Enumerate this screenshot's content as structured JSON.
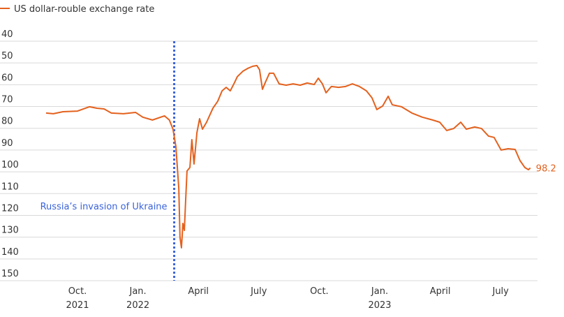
{
  "chart_data": {
    "type": "line",
    "x": [
      2021.62,
      2021.65,
      2021.69,
      2021.75,
      2021.8,
      2021.83,
      2021.86,
      2021.89,
      2021.94,
      2021.99,
      2022.02,
      2022.06,
      2022.11,
      2022.13,
      2022.145,
      2022.157,
      2022.163,
      2022.169,
      2022.174,
      2022.18,
      2022.186,
      2022.192,
      2022.197,
      2022.203,
      2022.215,
      2022.223,
      2022.232,
      2022.244,
      2022.255,
      2022.267,
      2022.284,
      2022.31,
      2022.33,
      2022.348,
      2022.365,
      2022.382,
      2022.4,
      2022.411,
      2022.434,
      2022.454,
      2022.475,
      2022.492,
      2022.503,
      2022.515,
      2022.527,
      2022.544,
      2022.561,
      2022.584,
      2022.613,
      2022.642,
      2022.671,
      2022.7,
      2022.729,
      2022.746,
      2022.763,
      2022.778,
      2022.8,
      2022.83,
      2022.859,
      2022.887,
      2022.916,
      2022.945,
      2022.968,
      2022.988,
      2023.012,
      2023.035,
      2023.052,
      2023.09,
      2023.133,
      2023.176,
      2023.219,
      2023.248,
      2023.277,
      2023.306,
      2023.335,
      2023.358,
      2023.393,
      2023.421,
      2023.45,
      2023.473,
      2023.502,
      2023.531,
      2023.56,
      2023.58,
      2023.6,
      2023.615,
      2023.623
    ],
    "series": [
      {
        "name": "US dollar-rouble exchange rate",
        "color": "#e3611e",
        "values": [
          73.0,
          73.3,
          72.4,
          72.1,
          70.1,
          70.8,
          71.1,
          73.0,
          73.3,
          72.7,
          74.9,
          76.2,
          74.3,
          76.2,
          80.4,
          88.4,
          98.0,
          107.6,
          130.1,
          134.9,
          123.7,
          126.9,
          114.0,
          99.6,
          98.0,
          85.2,
          96.4,
          82.0,
          75.6,
          80.4,
          77.2,
          70.8,
          67.6,
          62.8,
          61.2,
          62.8,
          58.9,
          56.3,
          53.8,
          52.5,
          51.5,
          51.2,
          53.1,
          62.1,
          58.9,
          54.7,
          54.7,
          59.6,
          60.2,
          59.6,
          60.2,
          59.2,
          59.9,
          57.0,
          59.6,
          63.7,
          60.8,
          61.2,
          60.8,
          59.6,
          60.8,
          62.8,
          66.0,
          71.4,
          69.8,
          65.3,
          69.2,
          70.1,
          73.0,
          74.9,
          76.2,
          77.2,
          81.0,
          80.1,
          77.2,
          80.4,
          79.4,
          80.1,
          83.6,
          84.2,
          90.0,
          89.4,
          89.7,
          94.8,
          98.0,
          99.0,
          98.2
        ]
      }
    ],
    "ylim": [
      40,
      150
    ],
    "y_inverted": true,
    "yticks": [
      40,
      50,
      60,
      70,
      80,
      90,
      100,
      110,
      120,
      130,
      140,
      150
    ],
    "xlim": [
      2021.5,
      2023.75
    ],
    "xticks": [
      {
        "value": 2021.75,
        "label": "Oct. 2021"
      },
      {
        "value": 2022.0,
        "label": "Jan. 2022"
      },
      {
        "value": 2022.25,
        "label": "April"
      },
      {
        "value": 2022.5,
        "label": "July"
      },
      {
        "value": 2022.75,
        "label": "Oct."
      },
      {
        "value": 2023.0,
        "label": "Jan. 2023"
      },
      {
        "value": 2023.25,
        "label": "April"
      },
      {
        "value": 2023.5,
        "label": "July"
      }
    ],
    "grid": true,
    "annotations": [
      {
        "x": 2022.15,
        "text": "Russia’s invasion of Ukraine",
        "color": "#3a63db"
      }
    ]
  }
}
